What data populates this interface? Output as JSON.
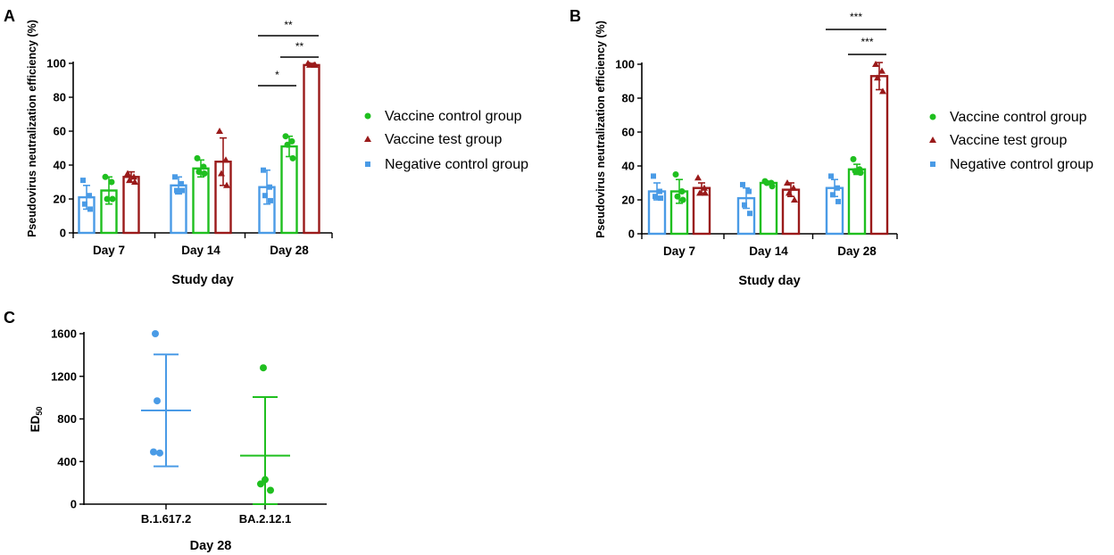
{
  "colors": {
    "negative": "#4a9be6",
    "vaccine_control": "#1fbf1f",
    "vaccine_test": "#9a1a1a",
    "axis": "#000000"
  },
  "chart_data": [
    {
      "panel": "A",
      "type": "bar",
      "xlabel": "Study day",
      "ylabel": "Pseudovirus neutralization efficiency (%)",
      "ylim": [
        0,
        100
      ],
      "yticks": [
        0,
        20,
        40,
        60,
        80,
        100
      ],
      "categories": [
        "Day 7",
        "Day 14",
        "Day 28"
      ],
      "series": [
        {
          "key": "negative",
          "name": "Negative control group",
          "marker": "square",
          "values": [
            21,
            28,
            27
          ],
          "errors": [
            7,
            5,
            10
          ],
          "points": [
            [
              31,
              22,
              17,
              14
            ],
            [
              33,
              29,
              25,
              25
            ],
            [
              37,
              27,
              22,
              19
            ]
          ]
        },
        {
          "key": "vaccine_control",
          "name": "Vaccine control group",
          "marker": "circle",
          "values": [
            25,
            38,
            51
          ],
          "errors": [
            8,
            5,
            6
          ],
          "points": [
            [
              33,
              30,
              20,
              20
            ],
            [
              44,
              39,
              36,
              35
            ],
            [
              57,
              54,
              52,
              44
            ]
          ]
        },
        {
          "key": "vaccine_test",
          "name": "Vaccine test group",
          "marker": "triangle",
          "values": [
            33,
            42,
            99
          ],
          "errors": [
            3,
            14,
            1
          ],
          "points": [
            [
              35,
              33,
              31,
              30
            ],
            [
              60,
              43,
              35,
              28
            ],
            [
              100,
              99,
              99,
              99
            ]
          ]
        }
      ],
      "significance": [
        {
          "label": "**",
          "from": [
            2,
            0
          ],
          "to": [
            2,
            2
          ],
          "level": 0
        },
        {
          "label": "**",
          "from": [
            2,
            1
          ],
          "to": [
            2,
            2
          ],
          "level": 1
        },
        {
          "label": "*",
          "from": [
            2,
            0
          ],
          "to": [
            2,
            1
          ],
          "level": 2
        }
      ],
      "legend": [
        "Vaccine control group",
        "Vaccine test group",
        "Negative control group"
      ]
    },
    {
      "panel": "B",
      "type": "bar",
      "xlabel": "Study day",
      "ylabel": "Pseudovirus neutralization efficiency (%)",
      "ylim": [
        0,
        100
      ],
      "yticks": [
        0,
        20,
        40,
        60,
        80,
        100
      ],
      "categories": [
        "Day 7",
        "Day 14",
        "Day 28"
      ],
      "series": [
        {
          "key": "negative",
          "name": "Negative control group",
          "marker": "square",
          "values": [
            25,
            21,
            27
          ],
          "errors": [
            5,
            6,
            5
          ],
          "points": [
            [
              34,
              25,
              22,
              21
            ],
            [
              29,
              25,
              17,
              12
            ],
            [
              34,
              27,
              23,
              19
            ]
          ]
        },
        {
          "key": "vaccine_control",
          "name": "Vaccine control group",
          "marker": "circle",
          "values": [
            25,
            30,
            38
          ],
          "errors": [
            7,
            1,
            3
          ],
          "points": [
            [
              35,
              25,
              22,
              20
            ],
            [
              31,
              30,
              30,
              28
            ],
            [
              44,
              38,
              37,
              36
            ]
          ]
        },
        {
          "key": "vaccine_test",
          "name": "Vaccine test group",
          "marker": "triangle",
          "values": [
            27,
            26,
            93
          ],
          "errors": [
            3,
            4,
            8
          ],
          "points": [
            [
              33,
              27,
              24,
              24
            ],
            [
              30,
              27,
              24,
              20
            ],
            [
              100,
              96,
              92,
              84
            ]
          ]
        }
      ],
      "significance": [
        {
          "label": "***",
          "from": [
            2,
            0
          ],
          "to": [
            2,
            2
          ],
          "level": 0
        },
        {
          "label": "***",
          "from": [
            2,
            1
          ],
          "to": [
            2,
            2
          ],
          "level": 1
        }
      ],
      "legend": [
        "Vaccine control group",
        "Vaccine test group",
        "Negative control group"
      ]
    },
    {
      "panel": "C",
      "type": "scatter",
      "xlabel": "Day 28",
      "ylabel": "ED50",
      "ylabel_main": "ED",
      "ylabel_sub": "50",
      "ylim": [
        0,
        1600
      ],
      "yticks": [
        0,
        400,
        800,
        1200,
        1600
      ],
      "categories": [
        "B.1.617.2",
        "BA.2.12.1"
      ],
      "series": [
        {
          "key": "negative",
          "name": "B.1.617.2",
          "marker": "circle",
          "points": [
            1600,
            970,
            490,
            480
          ],
          "mean": 880,
          "sd_upper": 1405,
          "sd_lower": 355
        },
        {
          "key": "vaccine_control",
          "name": "BA.2.12.1",
          "marker": "circle",
          "points": [
            1280,
            230,
            190,
            130
          ],
          "mean": 455,
          "sd_upper": 1005,
          "sd_lower": 0
        }
      ]
    }
  ]
}
